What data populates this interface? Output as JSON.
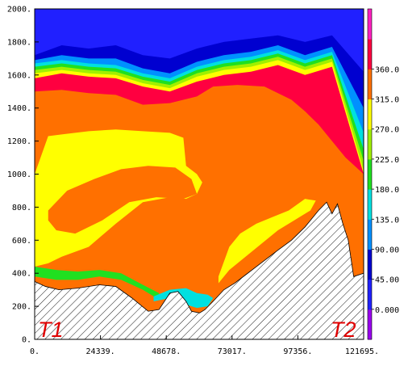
{
  "chart_data": {
    "type": "heatmap",
    "title": "",
    "xlabel": "",
    "ylabel": "",
    "xlim": [
      0,
      121695
    ],
    "ylim": [
      0,
      2000
    ],
    "x_ticks": [
      "0.",
      "24339.",
      "48678.",
      "73017.",
      "97356.",
      "121695."
    ],
    "y_ticks": [
      "0.",
      "200.",
      "400.",
      "600.",
      "800.",
      "1000.",
      "1200.",
      "1400.",
      "1600.",
      "1800.",
      "2000."
    ],
    "colorbar": {
      "labels": [
        "0.000",
        "45.00",
        "90.00",
        "135.0",
        "180.0",
        "225.0",
        "270.0",
        "315.0",
        "360.0"
      ],
      "colors": [
        "#9a00f0",
        "#2020ff",
        "#0000d0",
        "#0090ff",
        "#00e0e0",
        "#20e020",
        "#a0f000",
        "#ffff00",
        "#ff7000",
        "#ff0040",
        "#ff20c0"
      ]
    },
    "endpoint_labels": [
      "T1",
      "T2"
    ],
    "terrain": {
      "x": [
        0,
        4000,
        9000,
        16000,
        24000,
        30000,
        36000,
        42000,
        46000,
        50000,
        53000,
        56000,
        58000,
        61000,
        63000,
        66000,
        70000,
        74000,
        78000,
        82000,
        86000,
        90000,
        95000,
        100000,
        105000,
        108000,
        110000,
        112000,
        114000,
        116000,
        118000,
        121695
      ],
      "y": [
        350,
        320,
        300,
        310,
        330,
        320,
        250,
        170,
        180,
        280,
        290,
        230,
        170,
        160,
        180,
        230,
        300,
        340,
        390,
        440,
        490,
        540,
        600,
        680,
        780,
        830,
        760,
        820,
        700,
        600,
        380,
        400
      ]
    },
    "contour_layers": [
      {
        "name": "0.000",
        "color": "#2020ff",
        "x": [
          0,
          121695
        ],
        "y": [
          2000,
          2000
        ]
      },
      {
        "name": "45.00",
        "color": "#0000d0",
        "x": [
          0,
          10000,
          20000,
          30000,
          40000,
          50000,
          60000,
          70000,
          80000,
          90000,
          100000,
          110000,
          121695
        ],
        "y": [
          1720,
          1780,
          1760,
          1780,
          1720,
          1700,
          1760,
          1800,
          1820,
          1840,
          1800,
          1840,
          1620
        ]
      },
      {
        "name": "90.00",
        "color": "#0090ff",
        "x": [
          0,
          10000,
          20000,
          30000,
          40000,
          50000,
          60000,
          70000,
          80000,
          90000,
          100000,
          110000,
          121695
        ],
        "y": [
          1690,
          1720,
          1700,
          1700,
          1640,
          1610,
          1680,
          1720,
          1740,
          1780,
          1720,
          1770,
          1400
        ]
      },
      {
        "name": "135.0",
        "color": "#00e0e0",
        "x": [
          0,
          10000,
          20000,
          30000,
          40000,
          50000,
          60000,
          70000,
          80000,
          90000,
          100000,
          110000,
          121695
        ],
        "y": [
          1670,
          1690,
          1670,
          1660,
          1610,
          1580,
          1650,
          1690,
          1710,
          1750,
          1690,
          1740,
          1250
        ]
      },
      {
        "name": "180.0",
        "color": "#20e020",
        "x": [
          0,
          10000,
          20000,
          30000,
          40000,
          50000,
          60000,
          70000,
          80000,
          90000,
          100000,
          110000,
          121695
        ],
        "y": [
          1650,
          1670,
          1650,
          1640,
          1590,
          1560,
          1630,
          1670,
          1690,
          1730,
          1670,
          1720,
          1150
        ]
      },
      {
        "name": "225.0",
        "color": "#a0f000",
        "x": [
          0,
          10000,
          20000,
          30000,
          40000,
          50000,
          60000,
          70000,
          80000,
          90000,
          100000,
          110000,
          121695
        ],
        "y": [
          1630,
          1650,
          1630,
          1620,
          1570,
          1540,
          1610,
          1650,
          1670,
          1710,
          1650,
          1700,
          1080
        ]
      },
      {
        "name": "270.0",
        "color": "#ffff00",
        "x": [
          0,
          10000,
          20000,
          30000,
          40000,
          50000,
          60000,
          70000,
          80000,
          90000,
          100000,
          110000,
          121695
        ],
        "y": [
          1610,
          1630,
          1610,
          1600,
          1550,
          1520,
          1590,
          1630,
          1650,
          1690,
          1630,
          1680,
          1020
        ]
      },
      {
        "name": "315.0",
        "color": "#ff0040",
        "x": [
          0,
          10000,
          20000,
          30000,
          40000,
          50000,
          60000,
          70000,
          80000,
          90000,
          100000,
          110000,
          121695
        ],
        "y": [
          1580,
          1610,
          1590,
          1580,
          1530,
          1500,
          1560,
          1600,
          1620,
          1660,
          1600,
          1650,
          1000
        ]
      },
      {
        "name": "270.0",
        "color": "#ff7000",
        "x": [
          0,
          10000,
          20000,
          30000,
          40000,
          50000,
          60000,
          66000,
          75000,
          85000,
          95000,
          100000,
          105000,
          110000,
          115000,
          121695
        ],
        "y": [
          1500,
          1510,
          1490,
          1480,
          1420,
          1430,
          1470,
          1530,
          1540,
          1530,
          1450,
          1380,
          1300,
          1200,
          1100,
          1000
        ]
      },
      {
        "name": "225.0",
        "color": "#ffff00",
        "x": [
          0,
          5000,
          10000,
          20000,
          30000,
          40000,
          50000,
          55000,
          56000,
          60000,
          62000,
          60000,
          56000,
          50000,
          40000,
          30000,
          20000,
          10000,
          5000,
          0
        ],
        "y": [
          1000,
          1230,
          1240,
          1260,
          1270,
          1260,
          1250,
          1220,
          1050,
          1000,
          950,
          880,
          850,
          860,
          830,
          700,
          560,
          500,
          460,
          440
        ]
      },
      {
        "name": "270.0",
        "color": "#ff7000",
        "x": [
          5000,
          12000,
          22000,
          32000,
          42000,
          52000,
          58000,
          60000,
          55000,
          45000,
          35000,
          25000,
          15000,
          8000,
          5000
        ],
        "y": [
          780,
          900,
          970,
          1030,
          1050,
          1040,
          970,
          880,
          850,
          860,
          830,
          720,
          640,
          660,
          720
        ]
      },
      {
        "name": "225.0",
        "color": "#ffff00",
        "x": [
          68000,
          72000,
          76000,
          82000,
          88000,
          94000,
          100000,
          104000,
          102000,
          96000,
          90000,
          84000,
          78000,
          72000,
          68000
        ],
        "y": [
          380,
          560,
          640,
          700,
          740,
          780,
          850,
          840,
          780,
          720,
          660,
          580,
          500,
          420,
          340
        ]
      },
      {
        "name": "180.0",
        "color": "#20e020",
        "x": [
          0,
          8000,
          16000,
          24000,
          32000,
          40000,
          46000,
          46000,
          40000,
          32000,
          24000,
          16000,
          8000,
          0
        ],
        "y": [
          440,
          420,
          410,
          420,
          400,
          330,
          280,
          240,
          300,
          360,
          380,
          360,
          360,
          380
        ]
      },
      {
        "name": "135.0",
        "color": "#00e0e0",
        "x": [
          44000,
          50000,
          56000,
          60000,
          64000,
          66000,
          64000,
          60000,
          56000,
          50000,
          44000
        ],
        "y": [
          260,
          300,
          310,
          280,
          270,
          250,
          200,
          190,
          210,
          250,
          230
        ]
      }
    ]
  }
}
